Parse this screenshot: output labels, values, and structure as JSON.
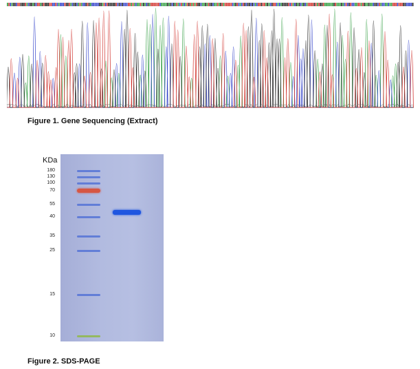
{
  "figure1": {
    "caption": "Figure 1. Gene Sequencing (Extract)",
    "trace_colors": {
      "A": "#2a9a3a",
      "C": "#2b3cc8",
      "G": "#222222",
      "T": "#d0302a"
    }
  },
  "figure2": {
    "caption": "Figure 2. SDS-PAGE",
    "unit_label": "KDa",
    "markers": [
      {
        "label": "180",
        "kda": 180,
        "color": "#5573d6"
      },
      {
        "label": "130",
        "kda": 130,
        "color": "#5573d6"
      },
      {
        "label": "100",
        "kda": 100,
        "color": "#5573d6"
      },
      {
        "label": "70",
        "kda": 70,
        "color": "#d9513b"
      },
      {
        "label": "55",
        "kda": 55,
        "color": "#5573d6"
      },
      {
        "label": "40",
        "kda": 40,
        "color": "#5573d6"
      },
      {
        "label": "35",
        "kda": 35,
        "color": "#5573d6"
      },
      {
        "label": "25",
        "kda": 25,
        "color": "#5573d6"
      },
      {
        "label": "15",
        "kda": 15,
        "color": "#5573d6"
      },
      {
        "label": "10",
        "kda": 10,
        "color": "#8fb84a"
      }
    ],
    "sample_band": {
      "kda": 45,
      "color": "#1f56e0"
    }
  }
}
